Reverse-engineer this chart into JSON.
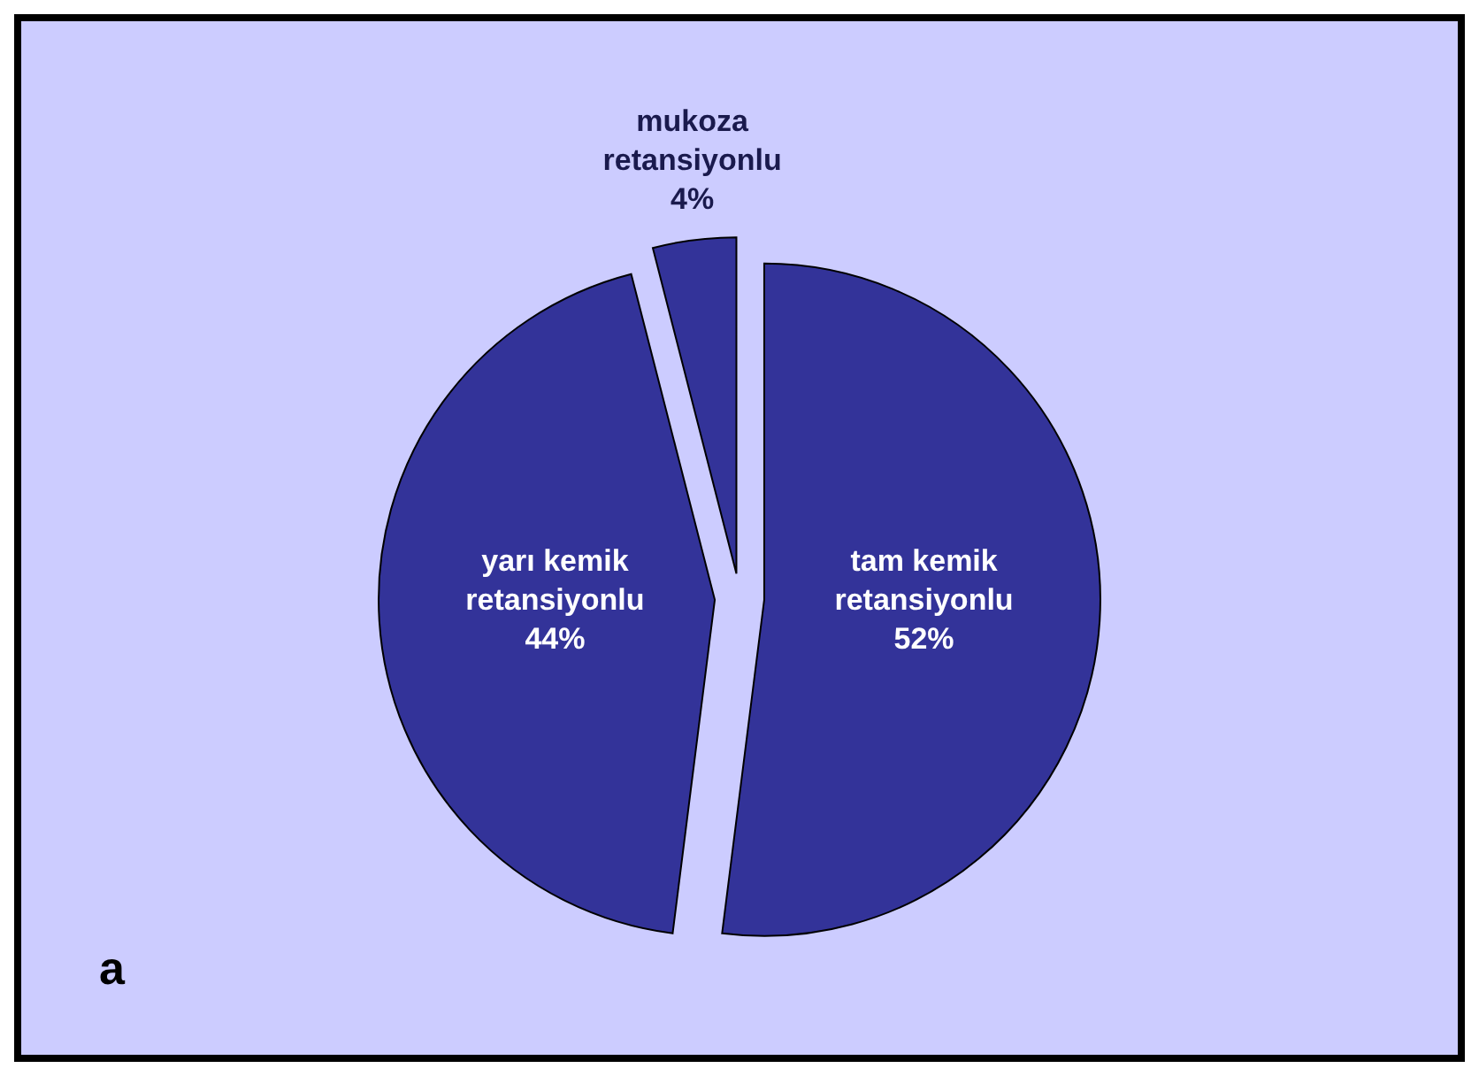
{
  "chart_data": {
    "type": "pie",
    "categories": [
      "tam kemik retansiyonlu",
      "yarı kemik retansiyonlu",
      "mukoza retansiyonlu"
    ],
    "values": [
      52,
      44,
      4
    ],
    "colors": [
      "#333399",
      "#333399",
      "#333399"
    ],
    "value_labels": [
      "52%",
      "44%",
      "4%"
    ],
    "annotations": [
      "a"
    ]
  }
}
